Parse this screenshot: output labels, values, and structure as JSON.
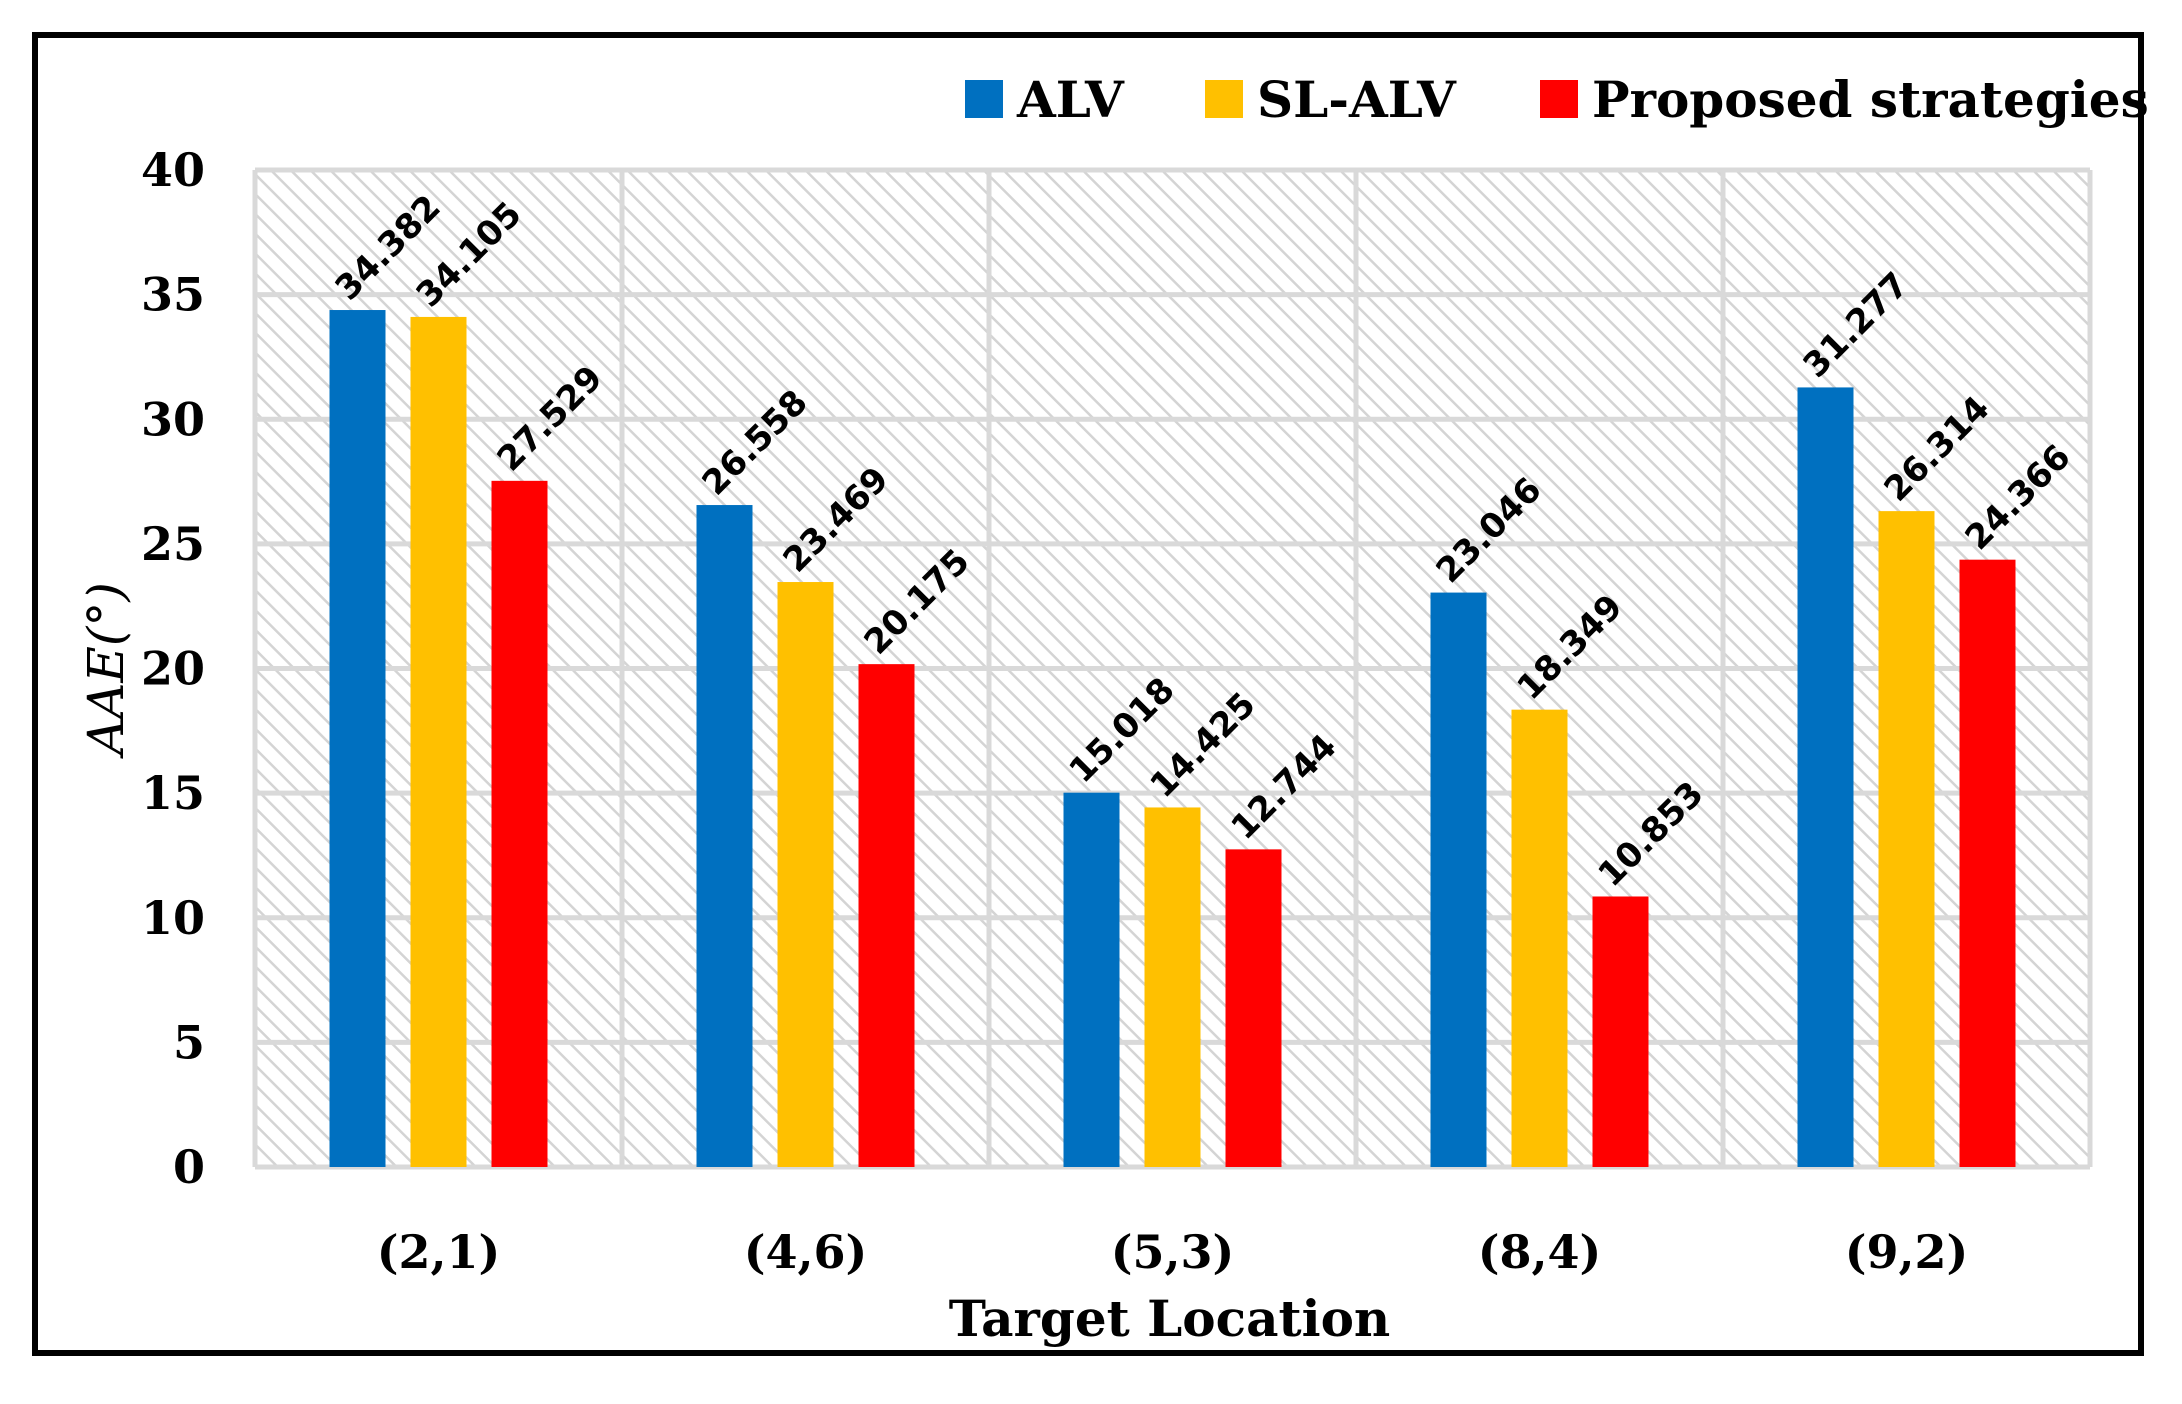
{
  "chart_data": {
    "type": "bar",
    "title": "",
    "xlabel": "Target Location",
    "ylabel": "AAE(°)",
    "ylim": [
      0,
      40
    ],
    "yticks": [
      0,
      5,
      10,
      15,
      20,
      25,
      30,
      35,
      40
    ],
    "grid": true,
    "legend_position": "top-right",
    "categories": [
      "(2,1)",
      "(4,6)",
      "(5,3)",
      "(8,4)",
      "(9,2)"
    ],
    "series": [
      {
        "name": "ALV",
        "color": "#0070C0",
        "values": [
          34.382,
          26.558,
          15.018,
          23.046,
          31.277
        ]
      },
      {
        "name": "SL-ALV",
        "color": "#FFC000",
        "values": [
          34.105,
          23.469,
          14.425,
          18.349,
          26.314
        ]
      },
      {
        "name": "Proposed strategies",
        "color": "#FF0000",
        "values": [
          27.529,
          20.175,
          12.744,
          10.853,
          24.366
        ]
      }
    ],
    "data_labels": [
      [
        "34.382",
        "26.558",
        "15.018",
        "23.046",
        "31.277"
      ],
      [
        "34.105",
        "23.469",
        "14.425",
        "18.349",
        "26.314"
      ],
      [
        "27.529",
        "20.175",
        "12.744",
        "10.853",
        "24.366"
      ]
    ]
  }
}
